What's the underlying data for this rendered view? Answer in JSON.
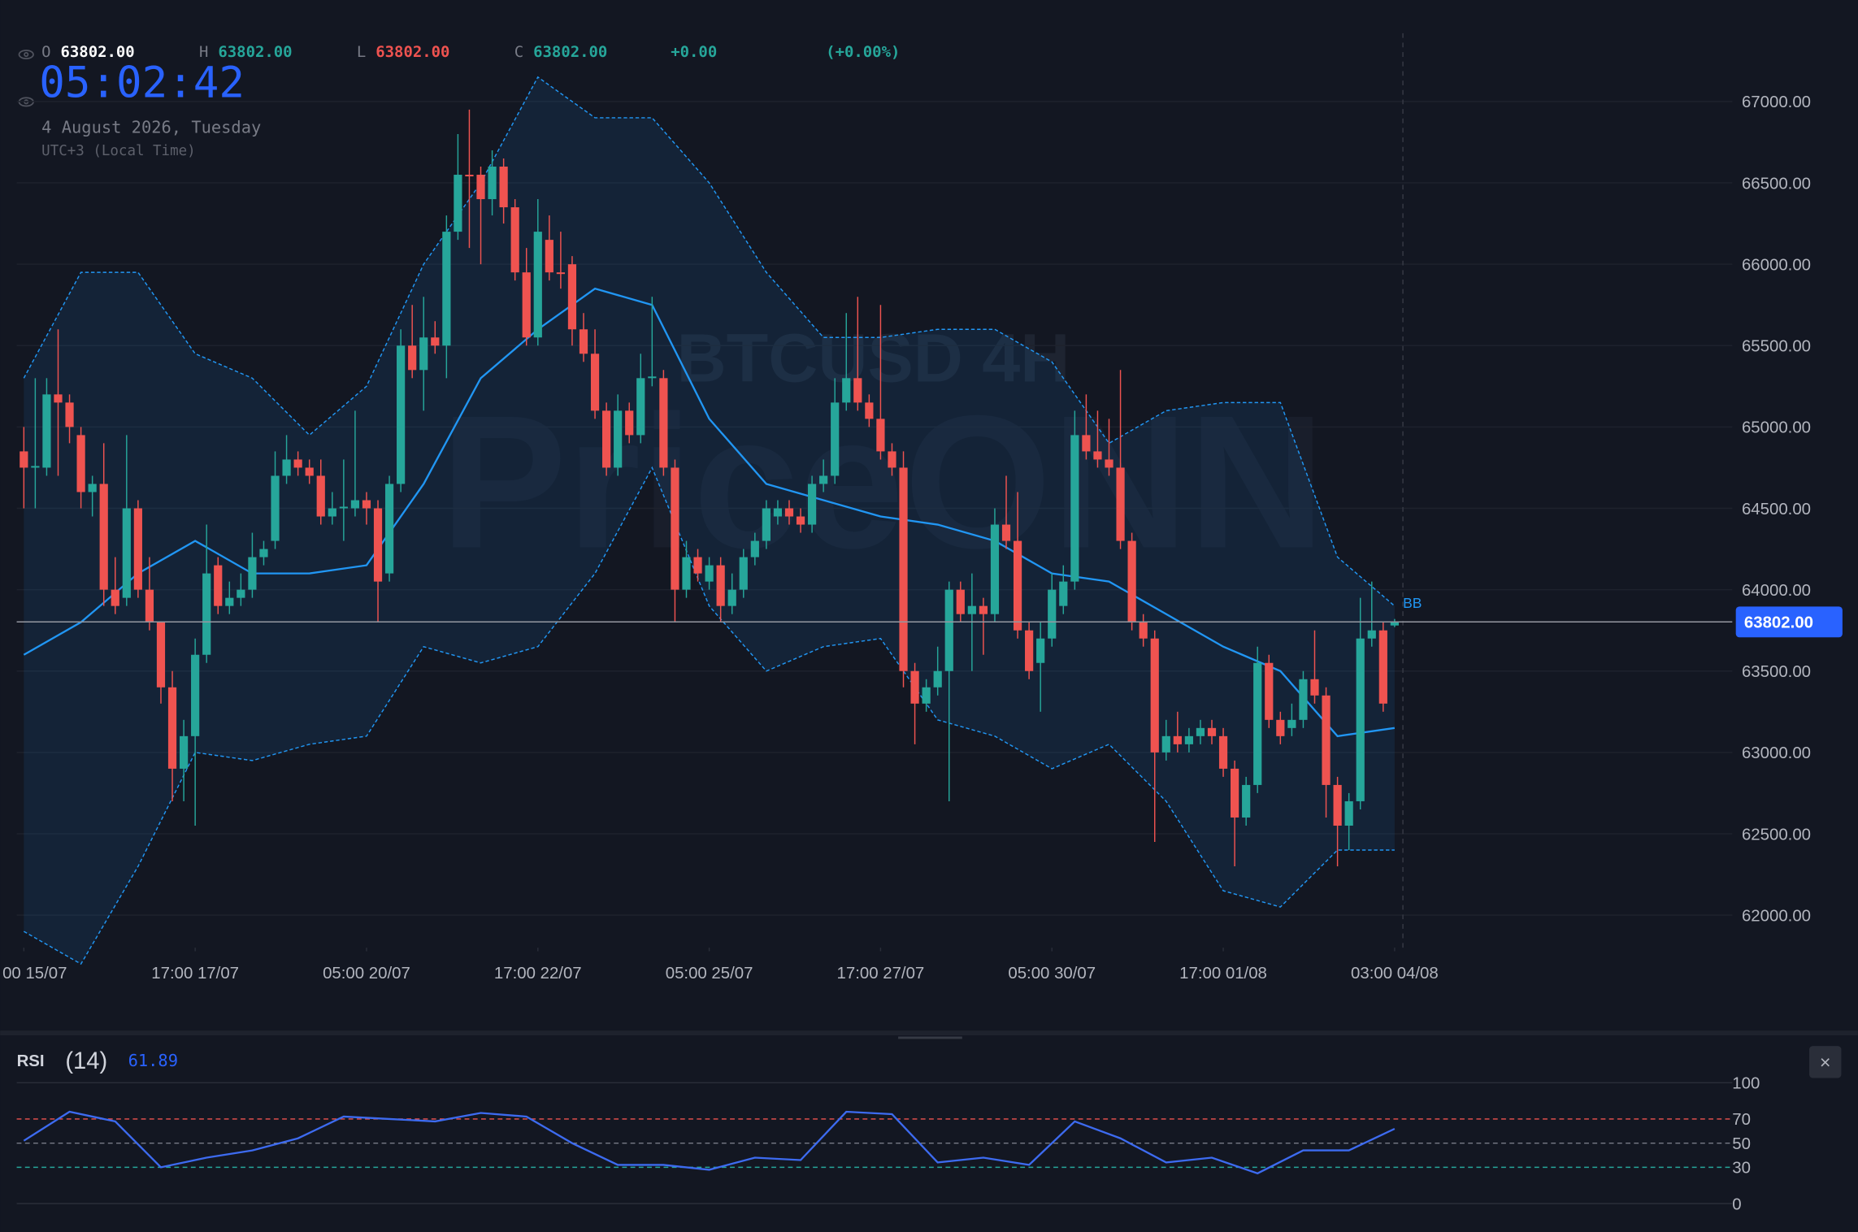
{
  "header": {
    "o_label": "O",
    "o": "63802.00",
    "h_label": "H",
    "h": "63802.00",
    "l_label": "L",
    "l": "63802.00",
    "c_label": "C",
    "c": "63802.00",
    "change": "+0.00",
    "change_pct": "(+0.00%)"
  },
  "clock": {
    "time": "05:02:42",
    "date": "4 August 2026, Tuesday",
    "zone": "UTC+3 (Local Time)"
  },
  "watermark": {
    "symbol": "BTCUSD 4H",
    "brand": "PriceONN"
  },
  "rsi_header": {
    "name": "RSI",
    "period": "(14)",
    "value": "61.89"
  },
  "close_button": "×",
  "chart_data": [
    {
      "type": "candlestick",
      "up_color": "#26a69a",
      "down_color": "#ef5350",
      "grid": true,
      "open": [
        64850,
        64750,
        64750,
        65200,
        65150,
        64950,
        64600,
        64650,
        64000,
        63950,
        64500,
        64000,
        63800,
        63400,
        62900,
        63100,
        63600,
        64150,
        63900,
        63950,
        64000,
        64200,
        64300,
        64700,
        64800,
        64750,
        64700,
        64450,
        64500,
        64500,
        64550,
        64500,
        64100,
        64650,
        65500,
        65350,
        65550,
        65500,
        66200,
        66550,
        66550,
        66400,
        66600,
        66350,
        65950,
        65550,
        66150,
        65950,
        66000,
        65600,
        65450,
        65100,
        64750,
        65100,
        64950,
        65300,
        65300,
        64750,
        64000,
        64200,
        64050,
        64150,
        63900,
        64000,
        64200,
        64300,
        64450,
        64500,
        64450,
        64400,
        64650,
        64700,
        65150,
        65300,
        65150,
        65050,
        64850,
        64750,
        63500,
        63300,
        63400,
        63500,
        64000,
        63850,
        63900,
        63850,
        64400,
        64300,
        63750,
        63550,
        63700,
        63900,
        64050,
        64950,
        64850,
        64800,
        64750,
        64300,
        63800,
        63700,
        63000,
        63100,
        63050,
        63100,
        63150,
        63100,
        62900,
        62600,
        62800,
        63550,
        63200,
        63150,
        63200,
        63450,
        63350,
        62800,
        62550,
        62700,
        63700,
        63750,
        63780
      ],
      "high": [
        65000,
        65300,
        65300,
        65600,
        65200,
        65000,
        64700,
        64900,
        64200,
        64950,
        64550,
        64200,
        63800,
        63500,
        63200,
        63700,
        64400,
        64200,
        64050,
        64100,
        64350,
        64300,
        64850,
        64950,
        64850,
        64800,
        64800,
        64600,
        64800,
        65100,
        64600,
        64550,
        64700,
        65600,
        65750,
        65800,
        65650,
        66300,
        66800,
        66950,
        66600,
        66700,
        66650,
        66400,
        66100,
        66400,
        66300,
        66200,
        66050,
        65700,
        65600,
        65150,
        65200,
        65150,
        65450,
        65800,
        65350,
        64800,
        64300,
        64250,
        64200,
        64200,
        64100,
        64250,
        64350,
        64550,
        64550,
        64550,
        64500,
        64700,
        64800,
        65300,
        65700,
        65800,
        65200,
        65750,
        64900,
        64850,
        63550,
        63450,
        63650,
        64050,
        64050,
        64100,
        63950,
        64500,
        64700,
        64600,
        63800,
        63800,
        64100,
        64150,
        65100,
        65200,
        65100,
        65050,
        65350,
        64350,
        63850,
        63750,
        63200,
        63250,
        63150,
        63200,
        63200,
        63150,
        62950,
        62850,
        63650,
        63600,
        63250,
        63300,
        63500,
        63750,
        63400,
        62850,
        62750,
        63950,
        64050,
        63800,
        63820
      ],
      "low": [
        64500,
        64500,
        64700,
        64700,
        64900,
        64500,
        64450,
        63900,
        63850,
        63900,
        63950,
        63750,
        63300,
        62700,
        62700,
        62550,
        63550,
        63850,
        63850,
        63900,
        63950,
        64150,
        64250,
        64650,
        64700,
        64650,
        64400,
        64400,
        64300,
        64450,
        64400,
        63800,
        64050,
        64600,
        65300,
        65100,
        65450,
        65300,
        66150,
        66100,
        66000,
        66300,
        66250,
        65900,
        65500,
        65500,
        65900,
        65850,
        65500,
        65400,
        65050,
        64700,
        64700,
        64900,
        64900,
        65250,
        64700,
        63800,
        63950,
        64050,
        64000,
        63800,
        63850,
        63950,
        64150,
        64250,
        64400,
        64400,
        64350,
        64350,
        64600,
        64650,
        65100,
        65100,
        65000,
        64800,
        64700,
        63400,
        63050,
        63250,
        63350,
        62700,
        63800,
        63500,
        63600,
        63800,
        64250,
        63700,
        63450,
        63250,
        63650,
        63850,
        64000,
        64800,
        64750,
        64700,
        64250,
        63750,
        63650,
        62450,
        62950,
        63000,
        63000,
        63050,
        63050,
        62850,
        62300,
        62550,
        62750,
        63150,
        63050,
        63100,
        63150,
        63300,
        62600,
        62300,
        62400,
        62650,
        63650,
        63250,
        63770
      ],
      "close": [
        64750,
        64760,
        65200,
        65150,
        65000,
        64600,
        64650,
        64000,
        63900,
        64500,
        64000,
        63800,
        63400,
        62900,
        63100,
        63600,
        64100,
        63900,
        63950,
        64000,
        64200,
        64250,
        64700,
        64800,
        64750,
        64700,
        64450,
        64500,
        64510,
        64550,
        64500,
        64050,
        64650,
        65500,
        65350,
        65550,
        65500,
        66200,
        66550,
        66540,
        66400,
        66600,
        66350,
        65950,
        65550,
        66200,
        65950,
        65940,
        65600,
        65450,
        65100,
        64750,
        65100,
        64950,
        65300,
        65310,
        64750,
        64000,
        64200,
        64100,
        64150,
        63900,
        64000,
        64200,
        64300,
        64500,
        64500,
        64450,
        64400,
        64650,
        64700,
        65150,
        65300,
        65150,
        65050,
        64850,
        64750,
        63500,
        63300,
        63400,
        63500,
        64000,
        63850,
        63900,
        63850,
        64400,
        64300,
        63750,
        63500,
        63700,
        64000,
        64050,
        64950,
        64850,
        64800,
        64750,
        64300,
        63800,
        63700,
        63000,
        63100,
        63050,
        63100,
        63150,
        63100,
        62900,
        62600,
        62800,
        63550,
        63200,
        63100,
        63200,
        63450,
        63350,
        62800,
        62550,
        62700,
        63700,
        63750,
        63300,
        63802
      ],
      "xticks": [
        {
          "value": 0,
          "label": "00 15/07"
        },
        {
          "value": 15,
          "label": "17:00 17/07"
        },
        {
          "value": 30,
          "label": "05:00 20/07"
        },
        {
          "value": 45,
          "label": "17:00 22/07"
        },
        {
          "value": 60,
          "label": "05:00 25/07"
        },
        {
          "value": 75,
          "label": "17:00 27/07"
        },
        {
          "value": 90,
          "label": "05:00 30/07"
        },
        {
          "value": 105,
          "label": "17:00 01/08"
        },
        {
          "value": 120,
          "label": "03:00 04/08"
        }
      ],
      "ylim": [
        61800,
        67420
      ],
      "yticks": [
        {
          "value": 62000,
          "label": "62000.00"
        },
        {
          "value": 62500,
          "label": "62500.00"
        },
        {
          "value": 63000,
          "label": "63000.00"
        },
        {
          "value": 63500,
          "label": "63500.00"
        },
        {
          "value": 64000,
          "label": "64000.00"
        },
        {
          "value": 64500,
          "label": "64500.00"
        },
        {
          "value": 65000,
          "label": "65000.00"
        },
        {
          "value": 65500,
          "label": "65500.00"
        },
        {
          "value": 66000,
          "label": "66000.00"
        },
        {
          "value": 66500,
          "label": "66500.00"
        },
        {
          "value": 67000,
          "label": "67000.00"
        }
      ],
      "bands": {
        "name": "BB",
        "color": "#2196f3",
        "index": [
          0,
          5,
          10,
          15,
          20,
          25,
          30,
          35,
          40,
          45,
          50,
          55,
          60,
          65,
          70,
          75,
          80,
          85,
          90,
          95,
          100,
          105,
          110,
          115,
          120
        ],
        "upper": [
          65300,
          65950,
          65950,
          65450,
          65300,
          64950,
          65250,
          66000,
          66500,
          67150,
          66900,
          66900,
          66500,
          65950,
          65550,
          65550,
          65600,
          65600,
          65400,
          64900,
          65100,
          65150,
          65150,
          64200,
          63900
        ],
        "middle": [
          63600,
          63800,
          64100,
          64300,
          64100,
          64100,
          64150,
          64650,
          65300,
          65600,
          65850,
          65750,
          65050,
          64650,
          64550,
          64450,
          64400,
          64300,
          64100,
          64050,
          63850,
          63650,
          63500,
          63100,
          63150
        ],
        "lower": [
          61900,
          61700,
          62300,
          63000,
          62950,
          63050,
          63100,
          63650,
          63550,
          63650,
          64100,
          64750,
          63900,
          63500,
          63650,
          63700,
          63200,
          63100,
          62900,
          63050,
          62700,
          62150,
          62050,
          62400,
          62400
        ]
      },
      "price_line": {
        "value": 63802,
        "label": "63802.00",
        "color": "#2962ff"
      }
    },
    {
      "type": "line",
      "color": "#3d6bf0",
      "x": [
        0,
        4,
        8,
        12,
        16,
        20,
        24,
        28,
        32,
        36,
        40,
        44,
        48,
        52,
        56,
        60,
        64,
        68,
        72,
        76,
        80,
        84,
        88,
        92,
        96,
        100,
        104,
        108,
        112,
        116,
        120
      ],
      "values": [
        52,
        76,
        68,
        30,
        38,
        44,
        54,
        72,
        70,
        68,
        75,
        72,
        50,
        32,
        32,
        28,
        38,
        36,
        76,
        74,
        34,
        38,
        32,
        68,
        54,
        34,
        38,
        25,
        44,
        44,
        61.89
      ],
      "ylim": [
        0,
        100
      ],
      "yticks": [
        0,
        30,
        50,
        70,
        100
      ],
      "ytick_colors": [
        "#2a2e39",
        "#26a69a",
        "#787b86",
        "#ef5350",
        "#2a2e39"
      ],
      "ytick_dashed": [
        false,
        true,
        true,
        true,
        false
      ]
    }
  ]
}
